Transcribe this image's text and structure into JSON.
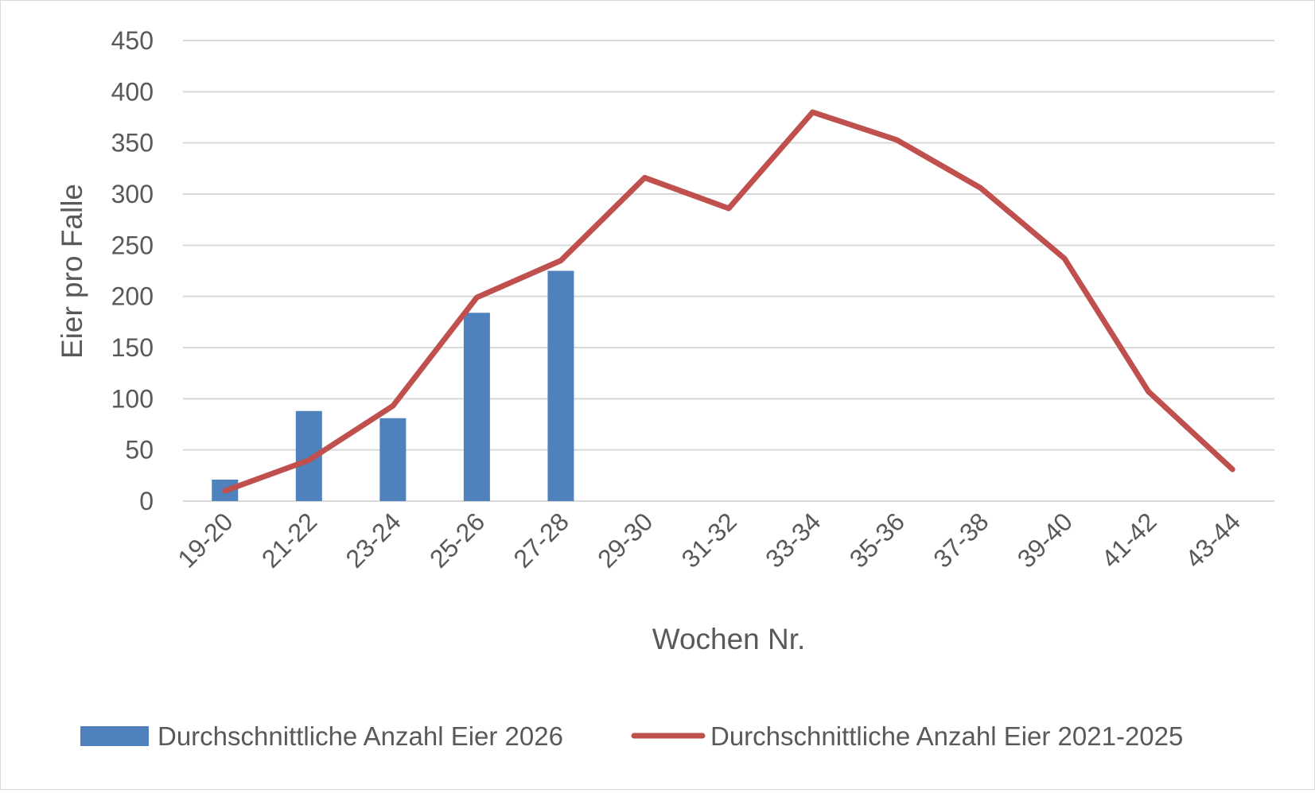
{
  "chart_data": {
    "type": "bar",
    "title": "",
    "xlabel": "Wochen Nr.",
    "ylabel": "Eier pro Falle",
    "ylim": [
      0,
      450
    ],
    "yticks": [
      "0",
      "50",
      "100",
      "150",
      "200",
      "250",
      "300",
      "350",
      "400",
      "450"
    ],
    "categories": [
      "19-20",
      "21-22",
      "23-24",
      "25-26",
      "27-28",
      "29-30",
      "31-32",
      "33-34",
      "35-36",
      "37-38",
      "39-40",
      "41-42",
      "43-44"
    ],
    "grid": true,
    "legend_position": "bottom",
    "series": [
      {
        "name": "Durchschnittliche Anzahl Eier 2026",
        "type": "bar",
        "color": "#4f81bd",
        "values": [
          21,
          88,
          81,
          184,
          225,
          null,
          null,
          null,
          null,
          null,
          null,
          null,
          null
        ]
      },
      {
        "name": "Durchschnittliche Anzahl Eier 2021-2025",
        "type": "line",
        "color": "#c0504d",
        "values": [
          10,
          40,
          93,
          199,
          235,
          316,
          286,
          380,
          353,
          306,
          237,
          107,
          31
        ]
      }
    ]
  }
}
